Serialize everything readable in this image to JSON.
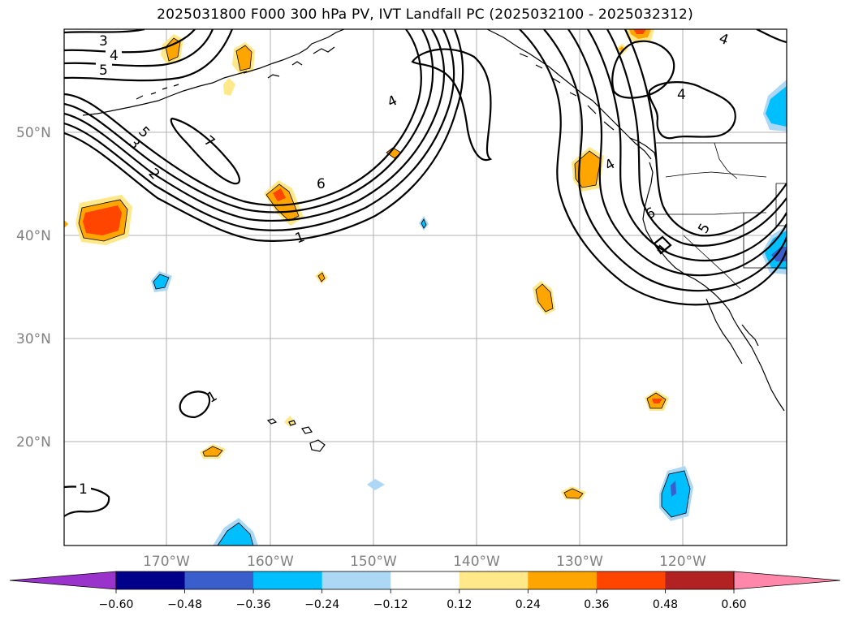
{
  "title": "2025031800 F000 300 hPa PV, IVT Landfall PC (2025032100 - 2025032312)",
  "map": {
    "lat_labels": [
      "50°N",
      "40°N",
      "30°N",
      "20°N"
    ],
    "lon_labels": [
      "170°W",
      "160°W",
      "150°W",
      "140°W",
      "130°W",
      "120°W"
    ],
    "gridlines": true,
    "contour_labels": [
      "3",
      "4",
      "5",
      "5",
      "3",
      "2",
      "7",
      "6",
      "1",
      "4",
      "4",
      "4",
      "6",
      "5",
      "7",
      "4",
      "1",
      "1"
    ]
  },
  "colorbar": {
    "tick_labels": [
      "−0.60",
      "−0.48",
      "−0.36",
      "−0.24",
      "−0.12",
      "0.12",
      "0.24",
      "0.36",
      "0.48",
      "0.60"
    ],
    "colors": [
      "#9933cc",
      "#00008b",
      "#3a5fcd",
      "#00bfff",
      "#add8f5",
      "#ffffff",
      "#ffe88a",
      "#ffa500",
      "#ff4500",
      "#b22222",
      "#ff88aa"
    ],
    "extend": "both"
  }
}
